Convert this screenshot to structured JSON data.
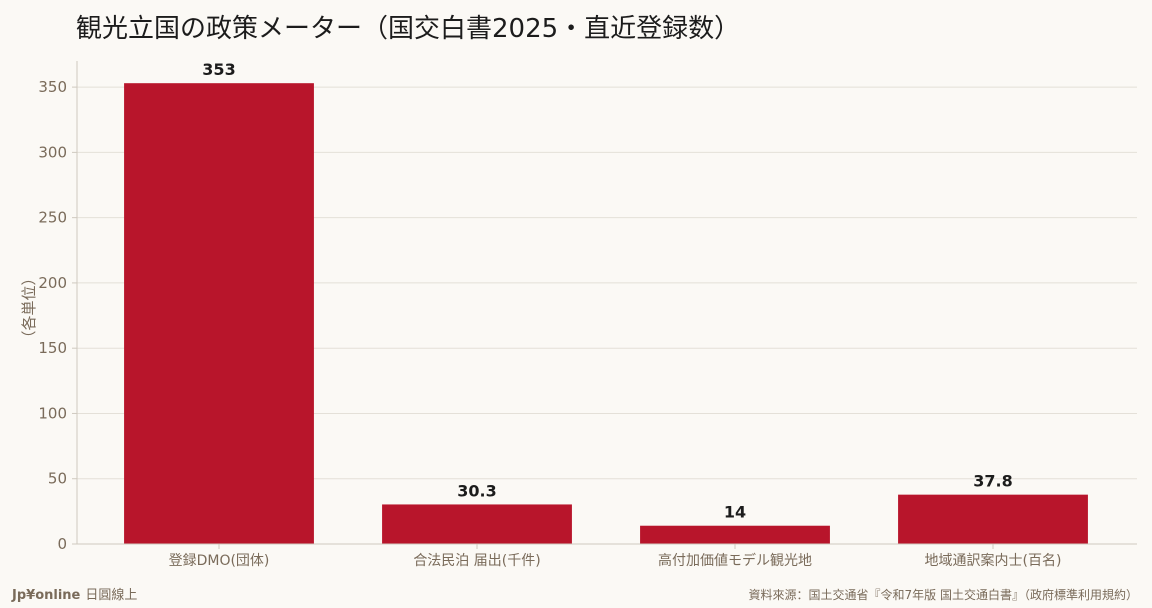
{
  "colors": {
    "background": "#fbf9f5",
    "bar": "#b8152b",
    "grid": "#e4e0d8",
    "axis": "#cfc9bf",
    "text": "#1c1c1c",
    "muted": "#7a6b5a"
  },
  "footer": {
    "brand": "Jp¥online",
    "brand_sub": "日圓線上",
    "source": "資料來源：国土交通省『令和7年版 国土交通白書』（政府標準利用規約）"
  },
  "chart_data": {
    "type": "bar",
    "title": "観光立国の政策メーター（国交白書2025・直近登録数）",
    "xlabel": "",
    "ylabel": "（各単位）",
    "ylim": [
      0,
      370
    ],
    "yticks": [
      0,
      50,
      100,
      150,
      200,
      250,
      300,
      350
    ],
    "grid": true,
    "categories": [
      "登録DMO(団体)",
      "合法民泊 届出(千件)",
      "高付加価値モデル観光地",
      "地域通訳案内士(百名)"
    ],
    "values": [
      353,
      30.3,
      14,
      37.8
    ],
    "value_labels": [
      "353",
      "30.3",
      "14",
      "37.8"
    ]
  }
}
